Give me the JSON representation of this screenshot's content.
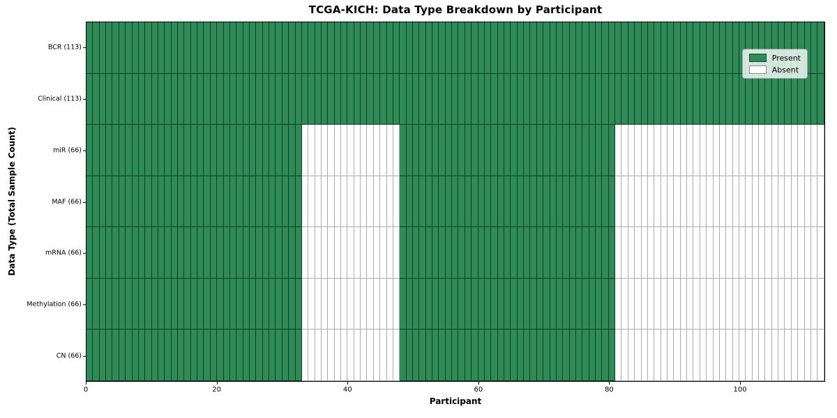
{
  "chart_data": {
    "type": "heatmap",
    "title": "TCGA-KICH: Data Type Breakdown by Participant",
    "xlabel": "Participant",
    "ylabel": "Data Type (Total Sample Count)",
    "n_participants": 113,
    "x_range": [
      0,
      113
    ],
    "x_ticks": [
      0,
      20,
      40,
      60,
      80,
      100
    ],
    "grid": false,
    "colors": {
      "present": "#2e8b57",
      "absent": "#ffffff"
    },
    "legend": {
      "position": "upper right",
      "entries": [
        {
          "label": "Present",
          "color": "#2e8b57"
        },
        {
          "label": "Absent",
          "color": "#ffffff"
        }
      ]
    },
    "rows": [
      {
        "data_type": "BCR",
        "label": "BCR (113)",
        "total_samples": 113,
        "present_ranges": [
          [
            0,
            113
          ]
        ]
      },
      {
        "data_type": "Clinical",
        "label": "Clinical (113)",
        "total_samples": 113,
        "present_ranges": [
          [
            0,
            113
          ]
        ]
      },
      {
        "data_type": "miR",
        "label": "miR (66)",
        "total_samples": 66,
        "present_ranges": [
          [
            0,
            33
          ],
          [
            48,
            81
          ]
        ]
      },
      {
        "data_type": "MAF",
        "label": "MAF (66)",
        "total_samples": 66,
        "present_ranges": [
          [
            0,
            33
          ],
          [
            48,
            81
          ]
        ]
      },
      {
        "data_type": "mRNA",
        "label": "mRNA (66)",
        "total_samples": 66,
        "present_ranges": [
          [
            0,
            33
          ],
          [
            48,
            81
          ]
        ]
      },
      {
        "data_type": "Methylation",
        "label": "Methylation (66)",
        "total_samples": 66,
        "present_ranges": [
          [
            0,
            33
          ],
          [
            48,
            81
          ]
        ]
      },
      {
        "data_type": "CN",
        "label": "CN (66)",
        "total_samples": 66,
        "present_ranges": [
          [
            0,
            33
          ],
          [
            48,
            81
          ]
        ]
      }
    ]
  }
}
